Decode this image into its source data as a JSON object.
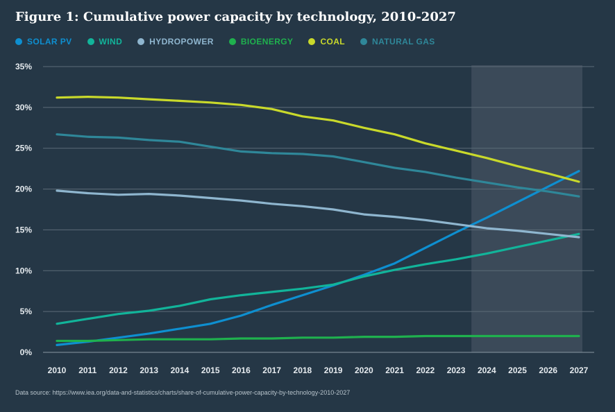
{
  "title": "Figure 1: Cumulative power capacity by technology, 2010-2027",
  "source": "Data source: https://www.iea.org/data-and-statistics/charts/share-of-cumulative-power-capacity-by-technology-2010-2027",
  "chart_data": {
    "type": "line",
    "title": "Figure 1: Cumulative power capacity by technology, 2010-2027",
    "x": [
      2010,
      2011,
      2012,
      2013,
      2014,
      2015,
      2016,
      2017,
      2018,
      2019,
      2020,
      2021,
      2022,
      2023,
      2024,
      2025,
      2026,
      2027
    ],
    "x_ticks": [
      "2010",
      "2011",
      "2012",
      "2013",
      "2014",
      "2015",
      "2016",
      "2017",
      "2018",
      "2019",
      "2020",
      "2021",
      "2022",
      "2023",
      "2024",
      "2025",
      "2026",
      "2027"
    ],
    "y_ticks": [
      "0%",
      "5%",
      "10%",
      "15%",
      "20%",
      "25%",
      "30%",
      "35%"
    ],
    "ylim": [
      0,
      35
    ],
    "grid": true,
    "legend_position": "top-left",
    "forecast_shading": [
      2024,
      2027
    ],
    "series": [
      {
        "name": "SOLAR PV",
        "color": "#0e8fd0",
        "values": [
          0.9,
          1.3,
          1.8,
          2.3,
          2.9,
          3.5,
          4.5,
          5.8,
          7.0,
          8.2,
          9.5,
          10.9,
          12.8,
          14.7,
          16.5,
          18.4,
          20.3,
          22.2
        ]
      },
      {
        "name": "WIND",
        "color": "#12b49a",
        "values": [
          3.5,
          4.1,
          4.7,
          5.1,
          5.7,
          6.5,
          7.0,
          7.4,
          7.8,
          8.3,
          9.3,
          10.1,
          10.8,
          11.4,
          12.1,
          12.9,
          13.7,
          14.5
        ]
      },
      {
        "name": "HYDROPOWER",
        "color": "#8fb6cf",
        "values": [
          19.8,
          19.5,
          19.3,
          19.4,
          19.2,
          18.9,
          18.6,
          18.2,
          17.9,
          17.5,
          16.9,
          16.6,
          16.2,
          15.7,
          15.2,
          14.9,
          14.5,
          14.1
        ]
      },
      {
        "name": "BIOENERGY",
        "color": "#1fb14e",
        "values": [
          1.4,
          1.4,
          1.5,
          1.6,
          1.6,
          1.6,
          1.7,
          1.7,
          1.8,
          1.8,
          1.9,
          1.9,
          2.0,
          2.0,
          2.0,
          2.0,
          2.0,
          2.0
        ]
      },
      {
        "name": "COAL",
        "color": "#c9d92b",
        "values": [
          31.2,
          31.3,
          31.2,
          31.0,
          30.8,
          30.6,
          30.3,
          29.8,
          28.9,
          28.4,
          27.5,
          26.7,
          25.6,
          24.7,
          23.8,
          22.8,
          21.9,
          20.9
        ]
      },
      {
        "name": "NATURAL GAS",
        "color": "#2f8799",
        "values": [
          26.7,
          26.4,
          26.3,
          26.0,
          25.8,
          25.2,
          24.6,
          24.4,
          24.3,
          24.0,
          23.3,
          22.6,
          22.1,
          21.4,
          20.8,
          20.2,
          19.7,
          19.1
        ]
      }
    ]
  }
}
